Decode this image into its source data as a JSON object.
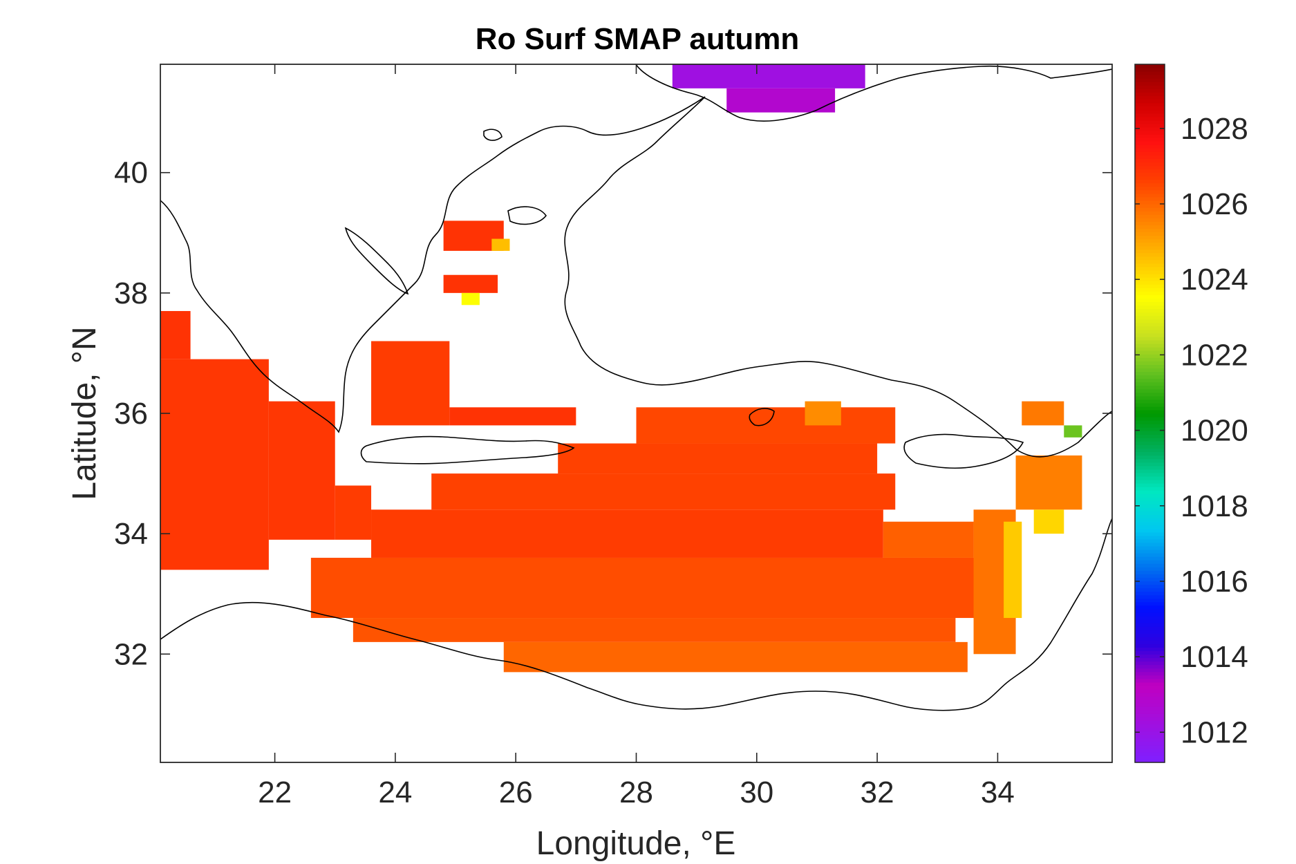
{
  "chart_data": {
    "type": "heatmap",
    "title": "Ro Surf SMAP autumn",
    "xlabel": "Longitude, °E",
    "ylabel": "Latitude, °N",
    "xlim": [
      20.1,
      35.9
    ],
    "ylim": [
      30.2,
      41.8
    ],
    "x_ticks": [
      "22",
      "24",
      "26",
      "28",
      "30",
      "32",
      "34"
    ],
    "x_tick_values": [
      22,
      24,
      26,
      28,
      30,
      32,
      34
    ],
    "y_ticks": [
      "32",
      "34",
      "36",
      "38",
      "40"
    ],
    "y_tick_values": [
      32,
      34,
      36,
      38,
      40
    ],
    "colorbar": {
      "min": 1011.2,
      "max": 1029.7,
      "ticks": [
        "1012",
        "1014",
        "1016",
        "1018",
        "1020",
        "1022",
        "1024",
        "1026",
        "1028"
      ],
      "tick_values": [
        1012,
        1014,
        1016,
        1018,
        1020,
        1022,
        1024,
        1026,
        1028
      ],
      "colormap": [
        "#7f20ff",
        "#a010e0",
        "#c000c0",
        "#3000e0",
        "#0010ff",
        "#0070f0",
        "#00c8f0",
        "#00e8c0",
        "#00b060",
        "#009900",
        "#60c020",
        "#c8e020",
        "#ffff00",
        "#ffc000",
        "#ff8000",
        "#ff4000",
        "#ff1010",
        "#d00000",
        "#8a0000"
      ]
    },
    "coastline": "black",
    "grid_step_deg": 0.25,
    "cells": [
      {
        "lon_min": 20.1,
        "lon_max": 21.9,
        "lat_min": 33.4,
        "lat_max": 36.9,
        "value": 1026.8
      },
      {
        "lon_min": 20.1,
        "lon_max": 20.6,
        "lat_min": 36.9,
        "lat_max": 37.7,
        "value": 1026.9
      },
      {
        "lon_min": 21.9,
        "lon_max": 23.0,
        "lat_min": 33.9,
        "lat_max": 36.2,
        "value": 1026.8
      },
      {
        "lon_min": 23.0,
        "lon_max": 23.6,
        "lat_min": 33.9,
        "lat_max": 34.8,
        "value": 1026.7
      },
      {
        "lon_min": 23.6,
        "lon_max": 32.1,
        "lat_min": 33.6,
        "lat_max": 34.4,
        "value": 1026.7
      },
      {
        "lon_min": 24.6,
        "lon_max": 32.3,
        "lat_min": 34.4,
        "lat_max": 35.0,
        "value": 1026.6
      },
      {
        "lon_min": 26.7,
        "lon_max": 32.0,
        "lat_min": 35.0,
        "lat_max": 35.5,
        "value": 1026.6
      },
      {
        "lon_min": 28.0,
        "lon_max": 32.3,
        "lat_min": 35.5,
        "lat_max": 36.1,
        "value": 1026.5
      },
      {
        "lon_min": 22.6,
        "lon_max": 33.8,
        "lat_min": 32.6,
        "lat_max": 33.6,
        "value": 1026.4
      },
      {
        "lon_min": 23.3,
        "lon_max": 33.3,
        "lat_min": 32.2,
        "lat_max": 32.6,
        "value": 1026.3
      },
      {
        "lon_min": 25.8,
        "lon_max": 33.5,
        "lat_min": 31.7,
        "lat_max": 32.2,
        "value": 1026.0
      },
      {
        "lon_min": 32.1,
        "lon_max": 33.6,
        "lat_min": 33.6,
        "lat_max": 34.2,
        "value": 1026.1
      },
      {
        "lon_min": 33.6,
        "lon_max": 34.3,
        "lat_min": 32.0,
        "lat_max": 34.4,
        "value": 1025.8
      },
      {
        "lon_min": 34.3,
        "lon_max": 35.4,
        "lat_min": 34.4,
        "lat_max": 35.3,
        "value": 1025.6
      },
      {
        "lon_min": 34.1,
        "lon_max": 34.4,
        "lat_min": 32.6,
        "lat_max": 34.2,
        "value": 1024.4
      },
      {
        "lon_min": 34.6,
        "lon_max": 35.1,
        "lat_min": 34.0,
        "lat_max": 34.4,
        "value": 1024.2
      },
      {
        "lon_min": 23.6,
        "lon_max": 24.9,
        "lat_min": 35.8,
        "lat_max": 37.2,
        "value": 1026.7
      },
      {
        "lon_min": 24.9,
        "lon_max": 27.0,
        "lat_min": 35.8,
        "lat_max": 36.1,
        "value": 1026.9
      },
      {
        "lon_min": 30.8,
        "lon_max": 31.4,
        "lat_min": 35.8,
        "lat_max": 36.2,
        "value": 1025.4
      },
      {
        "lon_min": 34.4,
        "lon_max": 35.1,
        "lat_min": 35.8,
        "lat_max": 36.2,
        "value": 1025.7
      },
      {
        "lon_min": 24.8,
        "lon_max": 25.8,
        "lat_min": 38.7,
        "lat_max": 39.2,
        "value": 1026.9
      },
      {
        "lon_min": 25.6,
        "lon_max": 25.9,
        "lat_min": 38.7,
        "lat_max": 38.9,
        "value": 1024.6
      },
      {
        "lon_min": 24.8,
        "lon_max": 25.7,
        "lat_min": 38.0,
        "lat_max": 38.3,
        "value": 1026.9
      },
      {
        "lon_min": 25.1,
        "lon_max": 25.4,
        "lat_min": 37.8,
        "lat_max": 38.0,
        "value": 1023.5
      },
      {
        "lon_min": 35.1,
        "lon_max": 35.4,
        "lat_min": 35.6,
        "lat_max": 35.8,
        "value": 1021.6
      },
      {
        "lon_min": 28.6,
        "lon_max": 31.8,
        "lat_min": 41.4,
        "lat_max": 41.8,
        "value": 1012.2
      },
      {
        "lon_min": 29.5,
        "lon_max": 31.3,
        "lat_min": 41.0,
        "lat_max": 41.4,
        "value": 1012.8
      }
    ]
  }
}
